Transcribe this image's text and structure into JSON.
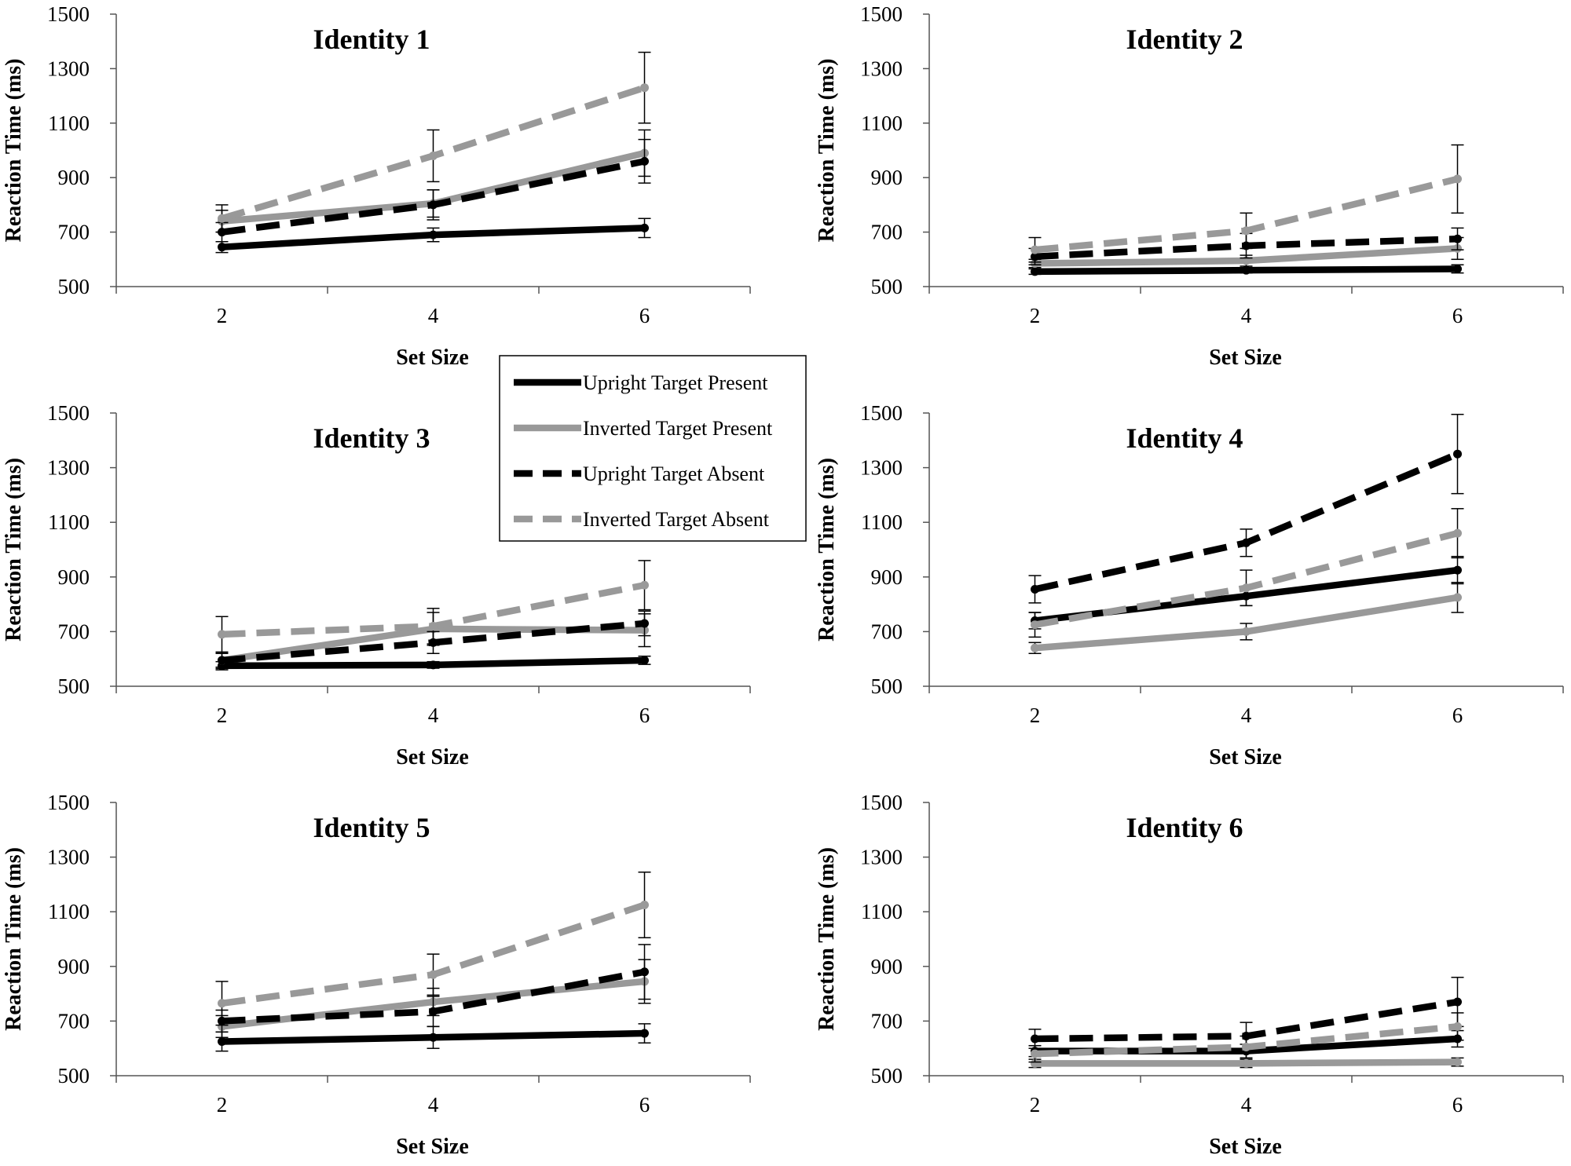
{
  "series_styles": [
    {
      "name": "Upright Target Present",
      "color": "#000000",
      "dashed": false
    },
    {
      "name": "Inverted Target Present",
      "color": "#999999",
      "dashed": false
    },
    {
      "name": "Upright Target Absent",
      "color": "#000000",
      "dashed": true
    },
    {
      "name": "Inverted Target Absent",
      "color": "#999999",
      "dashed": true
    }
  ],
  "chart_data": [
    {
      "type": "line",
      "title": "Identity 1",
      "xlabel": "Set Size",
      "ylabel": "Reaction Time (ms)",
      "x": [
        2,
        4,
        6
      ],
      "xticks": [
        "2",
        "4",
        "6"
      ],
      "xlim": [
        1,
        7
      ],
      "ylim": [
        500,
        1500
      ],
      "yticks": [
        "500",
        "700",
        "900",
        "1100",
        "1300",
        "1500"
      ],
      "series": [
        {
          "name": "Upright Target Present",
          "values": [
            645,
            690,
            715
          ],
          "errors": [
            20,
            25,
            35
          ]
        },
        {
          "name": "Inverted Target Present",
          "values": [
            740,
            805,
            990
          ],
          "errors": [
            40,
            50,
            85
          ]
        },
        {
          "name": "Upright Target Absent",
          "values": [
            700,
            800,
            960
          ],
          "errors": [
            35,
            55,
            80
          ]
        },
        {
          "name": "Inverted Target Absent",
          "values": [
            750,
            980,
            1230
          ],
          "errors": [
            50,
            95,
            130
          ]
        }
      ]
    },
    {
      "type": "line",
      "title": "Identity 2",
      "xlabel": "Set Size",
      "ylabel": "Reaction Time (ms)",
      "x": [
        2,
        4,
        6
      ],
      "xticks": [
        "2",
        "4",
        "6"
      ],
      "xlim": [
        1,
        7
      ],
      "ylim": [
        500,
        1500
      ],
      "yticks": [
        "500",
        "700",
        "900",
        "1100",
        "1300",
        "1500"
      ],
      "series": [
        {
          "name": "Upright Target Present",
          "values": [
            555,
            560,
            565
          ],
          "errors": [
            10,
            10,
            15
          ]
        },
        {
          "name": "Inverted Target Present",
          "values": [
            585,
            595,
            640
          ],
          "errors": [
            15,
            20,
            40
          ]
        },
        {
          "name": "Upright Target Absent",
          "values": [
            610,
            650,
            675
          ],
          "errors": [
            30,
            45,
            40
          ]
        },
        {
          "name": "Inverted Target Absent",
          "values": [
            635,
            705,
            895
          ],
          "errors": [
            45,
            65,
            125
          ]
        }
      ]
    },
    {
      "type": "line",
      "title": "Identity 3",
      "xlabel": "Set Size",
      "ylabel": "Reaction Time (ms)",
      "x": [
        2,
        4,
        6
      ],
      "xticks": [
        "2",
        "4",
        "6"
      ],
      "xlim": [
        1,
        7
      ],
      "ylim": [
        500,
        1500
      ],
      "yticks": [
        "500",
        "700",
        "900",
        "1100",
        "1300",
        "1500"
      ],
      "series": [
        {
          "name": "Upright Target Present",
          "values": [
            575,
            578,
            595
          ],
          "errors": [
            15,
            12,
            15
          ]
        },
        {
          "name": "Inverted Target Present",
          "values": [
            595,
            710,
            705
          ],
          "errors": [
            25,
            60,
            60
          ]
        },
        {
          "name": "Upright Target Absent",
          "values": [
            595,
            660,
            730
          ],
          "errors": [
            30,
            40,
            45
          ]
        },
        {
          "name": "Inverted Target Absent",
          "values": [
            690,
            720,
            870
          ],
          "errors": [
            65,
            65,
            90
          ]
        }
      ]
    },
    {
      "type": "line",
      "title": "Identity 4",
      "xlabel": "Set Size",
      "ylabel": "Reaction Time (ms)",
      "x": [
        2,
        4,
        6
      ],
      "xticks": [
        "2",
        "4",
        "6"
      ],
      "xlim": [
        1,
        7
      ],
      "ylim": [
        500,
        1500
      ],
      "yticks": [
        "500",
        "700",
        "900",
        "1100",
        "1300",
        "1500"
      ],
      "series": [
        {
          "name": "Upright Target Present",
          "values": [
            740,
            830,
            925
          ],
          "errors": [
            30,
            35,
            50
          ]
        },
        {
          "name": "Inverted Target Present",
          "values": [
            640,
            700,
            825
          ],
          "errors": [
            20,
            30,
            55
          ]
        },
        {
          "name": "Upright Target Absent",
          "values": [
            855,
            1025,
            1350
          ],
          "errors": [
            50,
            50,
            145
          ]
        },
        {
          "name": "Inverted Target Absent",
          "values": [
            725,
            860,
            1060
          ],
          "errors": [
            45,
            65,
            90
          ]
        }
      ]
    },
    {
      "type": "line",
      "title": "Identity 5",
      "xlabel": "Set Size",
      "ylabel": "Reaction Time (ms)",
      "x": [
        2,
        4,
        6
      ],
      "xticks": [
        "2",
        "4",
        "6"
      ],
      "xlim": [
        1,
        7
      ],
      "ylim": [
        500,
        1500
      ],
      "yticks": [
        "500",
        "700",
        "900",
        "1100",
        "1300",
        "1500"
      ],
      "series": [
        {
          "name": "Upright Target Present",
          "values": [
            625,
            640,
            655
          ],
          "errors": [
            35,
            40,
            35
          ]
        },
        {
          "name": "Inverted Target Present",
          "values": [
            680,
            770,
            845
          ],
          "errors": [
            40,
            50,
            80
          ]
        },
        {
          "name": "Upright Target Absent",
          "values": [
            700,
            735,
            880
          ],
          "errors": [
            40,
            55,
            100
          ]
        },
        {
          "name": "Inverted Target Absent",
          "values": [
            765,
            870,
            1125
          ],
          "errors": [
            80,
            75,
            120
          ]
        }
      ]
    },
    {
      "type": "line",
      "title": "Identity 6",
      "xlabel": "Set Size",
      "ylabel": "Reaction Time (ms)",
      "x": [
        2,
        4,
        6
      ],
      "xticks": [
        "2",
        "4",
        "6"
      ],
      "xlim": [
        1,
        7
      ],
      "ylim": [
        500,
        1500
      ],
      "yticks": [
        "500",
        "700",
        "900",
        "1100",
        "1300",
        "1500"
      ],
      "series": [
        {
          "name": "Upright Target Present",
          "values": [
            590,
            590,
            635
          ],
          "errors": [
            20,
            25,
            30
          ]
        },
        {
          "name": "Inverted Target Present",
          "values": [
            545,
            545,
            550
          ],
          "errors": [
            15,
            15,
            15
          ]
        },
        {
          "name": "Upright Target Absent",
          "values": [
            635,
            645,
            770
          ],
          "errors": [
            35,
            50,
            90
          ]
        },
        {
          "name": "Inverted Target Absent",
          "values": [
            580,
            605,
            680
          ],
          "errors": [
            30,
            40,
            50
          ]
        }
      ]
    }
  ]
}
